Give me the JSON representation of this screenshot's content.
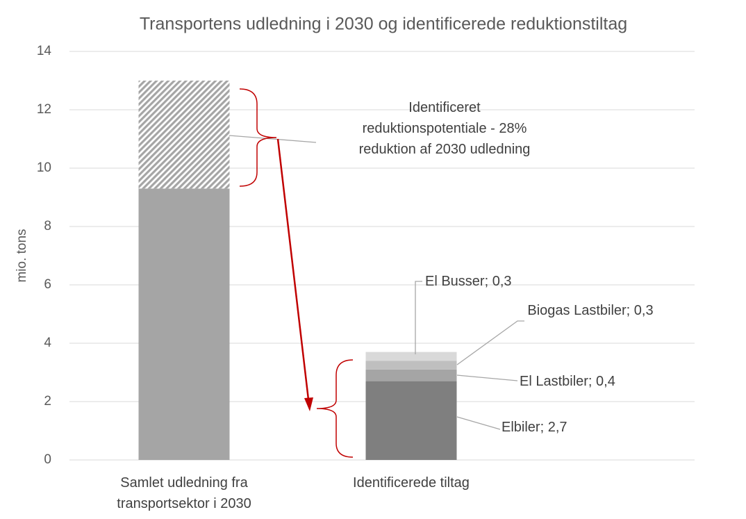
{
  "chart_data": {
    "type": "stacked_bar",
    "title": "Transportens udledning i 2030 og identificerede reduktionstiltag",
    "y_label": "mio. tons",
    "categories": [
      "Samlet udledning fra transportsektor i 2030",
      "Identificerede tiltag"
    ],
    "series": [
      {
        "color": "#a5a5a5",
        "values": [
          9.3,
          null
        ]
      },
      {
        "color": "#a5a5a5",
        "hatch": true,
        "values": [
          3.7,
          null
        ]
      },
      {
        "name": "Elbiler",
        "color": "#7f7f7f",
        "values": [
          null,
          2.7
        ],
        "value_labels": [
          null,
          "Elbiler; 2,7"
        ]
      },
      {
        "name": "El Lastbiler",
        "color": "#a5a5a5",
        "values": [
          null,
          0.4
        ],
        "value_labels": [
          null,
          "El Lastbiler; 0,4"
        ]
      },
      {
        "name": "Biogas Lastbiler",
        "color": "#bfbfbf",
        "values": [
          null,
          0.3
        ],
        "value_labels": [
          null,
          "Biogas Lastbiler; 0,3"
        ]
      },
      {
        "name": "El Busser",
        "color": "#d9d9d9",
        "values": [
          null,
          0.3
        ],
        "value_labels": [
          null,
          "El Busser; 0,3"
        ]
      }
    ],
    "annotations": [
      "Identificeret reduktionspotentiale - 28% reduktion af 2030 udledning"
    ],
    "ylim": [
      0,
      14
    ],
    "yticks": [
      0,
      2,
      4,
      6,
      8,
      10,
      12,
      14
    ],
    "grid": true
  }
}
